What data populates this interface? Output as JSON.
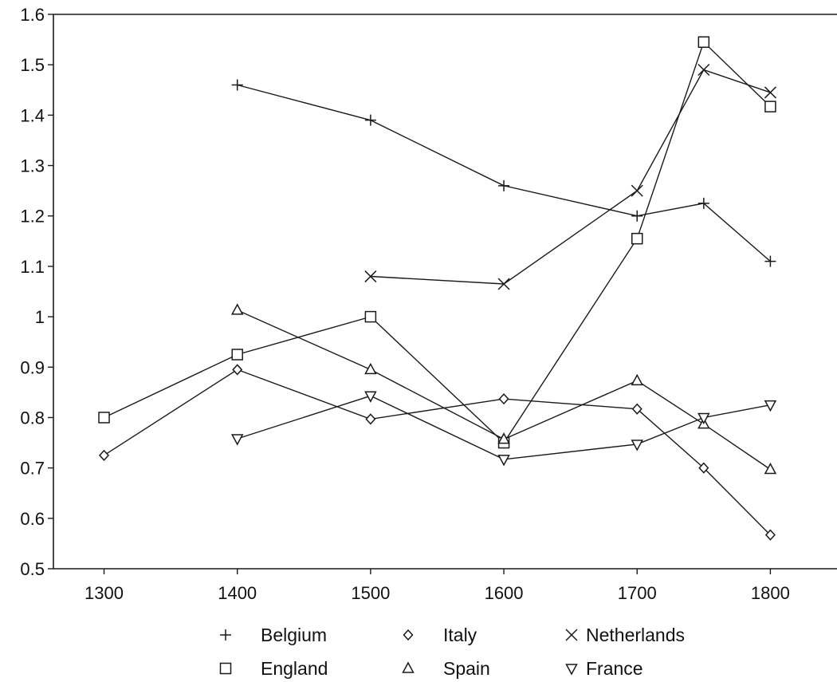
{
  "chart_data": {
    "type": "line",
    "title": "",
    "xlabel": "",
    "ylabel": "",
    "xlim": [
      1262,
      1850
    ],
    "ylim": [
      0.5,
      1.6
    ],
    "x_ticks": [
      1300,
      1400,
      1500,
      1600,
      1700,
      1800
    ],
    "y_ticks": [
      0.5,
      0.6,
      0.7,
      0.8,
      0.9,
      1,
      1.1,
      1.2,
      1.3,
      1.4,
      1.5,
      1.6
    ],
    "y_tick_labels": [
      "0.5",
      "0.6",
      "0.7",
      "0.8",
      "0.9",
      "1",
      "1.1",
      "1.2",
      "1.3",
      "1.4",
      "1.5",
      "1.6"
    ],
    "grid": false,
    "legend_position": "bottom",
    "series": [
      {
        "name": "Belgium",
        "marker": "plus",
        "points": [
          [
            1400,
            1.46
          ],
          [
            1500,
            1.39
          ],
          [
            1600,
            1.26
          ],
          [
            1700,
            1.2
          ],
          [
            1750,
            1.225
          ],
          [
            1800,
            1.11
          ]
        ]
      },
      {
        "name": "Italy",
        "marker": "diamond",
        "points": [
          [
            1300,
            0.725
          ],
          [
            1400,
            0.895
          ],
          [
            1500,
            0.797
          ],
          [
            1600,
            0.837
          ],
          [
            1700,
            0.817
          ],
          [
            1750,
            0.7
          ],
          [
            1800,
            0.567
          ]
        ]
      },
      {
        "name": "Netherlands",
        "marker": "cross",
        "points": [
          [
            1500,
            1.08
          ],
          [
            1600,
            1.065
          ],
          [
            1700,
            1.25
          ],
          [
            1750,
            1.49
          ],
          [
            1800,
            1.445
          ]
        ]
      },
      {
        "name": "England",
        "marker": "square",
        "points": [
          [
            1300,
            0.8
          ],
          [
            1400,
            0.925
          ],
          [
            1500,
            1.0
          ],
          [
            1600,
            0.75
          ],
          [
            1700,
            1.155
          ],
          [
            1750,
            1.545
          ],
          [
            1800,
            1.417
          ]
        ]
      },
      {
        "name": "Spain",
        "marker": "triangle-up",
        "points": [
          [
            1400,
            1.013
          ],
          [
            1500,
            0.895
          ],
          [
            1600,
            0.757
          ],
          [
            1700,
            0.873
          ],
          [
            1750,
            0.787
          ],
          [
            1800,
            0.697
          ]
        ]
      },
      {
        "name": "France",
        "marker": "triangle-down",
        "points": [
          [
            1400,
            0.758
          ],
          [
            1500,
            0.843
          ],
          [
            1600,
            0.717
          ],
          [
            1700,
            0.747
          ],
          [
            1750,
            0.8
          ],
          [
            1800,
            0.825
          ]
        ]
      }
    ]
  }
}
